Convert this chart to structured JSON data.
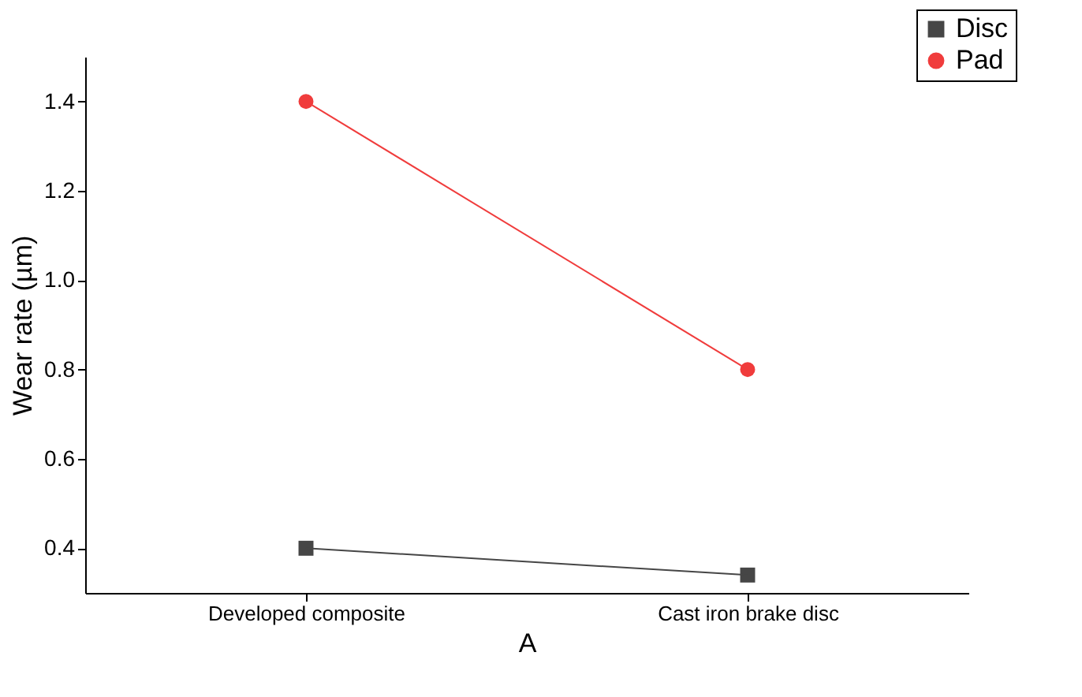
{
  "chart_data": {
    "type": "line",
    "xlabel": "A",
    "ylabel": "Wear rate (µm)",
    "categories": [
      "Developed composite",
      "Cast iron brake disc"
    ],
    "series": [
      {
        "name": "Disc",
        "color": "#464646",
        "marker": "square",
        "values": [
          0.4,
          0.34
        ]
      },
      {
        "name": "Pad",
        "color": "#f03c3c",
        "marker": "circle",
        "values": [
          1.4,
          0.8
        ]
      }
    ],
    "ylim": [
      0.3,
      1.5
    ],
    "yticks": [
      0.4,
      0.6,
      0.8,
      {
        "value": 1.0,
        "label": "1.0"
      },
      1.2,
      1.4
    ],
    "grid": false,
    "legend": "top right",
    "line_style": "solid"
  }
}
